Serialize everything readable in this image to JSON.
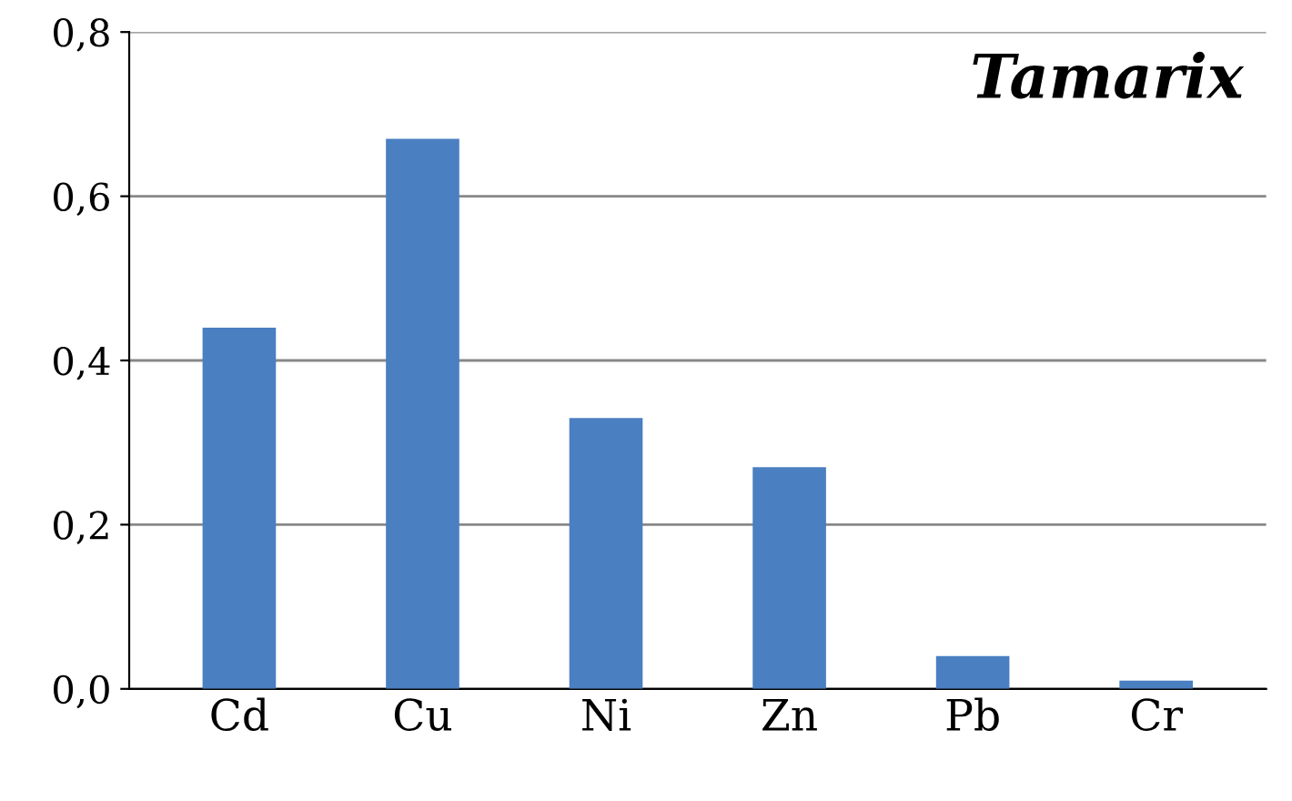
{
  "chart_data": {
    "type": "bar",
    "title": "Tamarix",
    "categories": [
      "Cd",
      "Cu",
      "Ni",
      "Zn",
      "Pb",
      "Cr"
    ],
    "values": [
      0.44,
      0.67,
      0.33,
      0.27,
      0.04,
      0.01
    ],
    "color": "#4a7fc1",
    "ylim": [
      0,
      0.8
    ],
    "yticks": [
      {
        "value": 0,
        "label": "0,0"
      },
      {
        "value": 0.2,
        "label": "0,2"
      },
      {
        "value": 0.4,
        "label": "0,4"
      },
      {
        "value": 0.6,
        "label": "0,6"
      },
      {
        "value": 0.8,
        "label": "0,8"
      }
    ],
    "grid": "y"
  }
}
